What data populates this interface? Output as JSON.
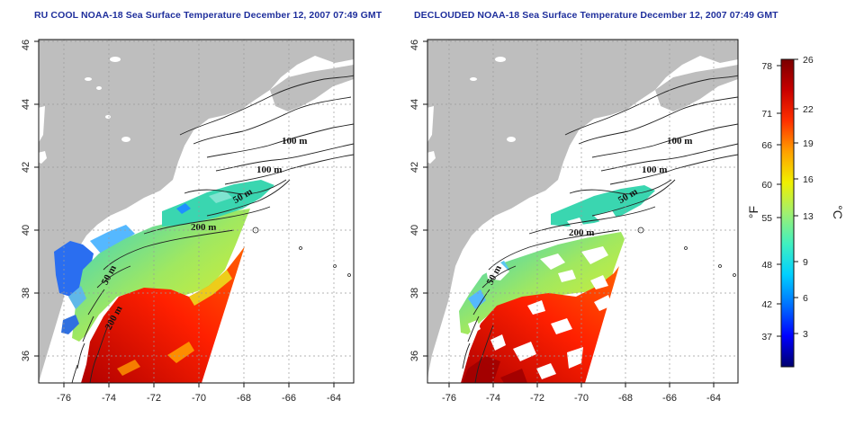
{
  "panels": [
    {
      "title": "RU COOL NOAA-18 Sea Surface Temperature December 12, 2007 07:49 GMT",
      "contour_labels": [
        "100 m",
        "100 m",
        "50 m",
        "200 m",
        "50 m",
        "200 m"
      ],
      "clouded": true
    },
    {
      "title": "DECLOUDED NOAA-18 Sea Surface Temperature December 12, 2007 07:49 GMT",
      "contour_labels": [
        "100 m",
        "100 m",
        "50 m",
        "200 m",
        "50 m"
      ],
      "clouded": false
    }
  ],
  "map": {
    "lon_ticks": [
      "-76",
      "-74",
      "-72",
      "-70",
      "-68",
      "-66",
      "-64"
    ],
    "lat_ticks": [
      "36",
      "38",
      "40",
      "42",
      "44",
      "46"
    ],
    "land_color": "#bebebe",
    "grid": true
  },
  "colorbar": {
    "fahrenheit_ticks": [
      "78",
      "71",
      "66",
      "60",
      "55",
      "48",
      "42",
      "37"
    ],
    "celsius_ticks": [
      "26",
      "22",
      "19",
      "16",
      "13",
      "9",
      "6",
      "3"
    ],
    "left_unit": "°F",
    "right_unit": "°C",
    "colors": [
      "#00006e",
      "#0000ff",
      "#0070ff",
      "#00d0ff",
      "#40f0c0",
      "#a0f070",
      "#f0f000",
      "#ffa000",
      "#ff3000",
      "#c80000",
      "#7a0000"
    ]
  }
}
